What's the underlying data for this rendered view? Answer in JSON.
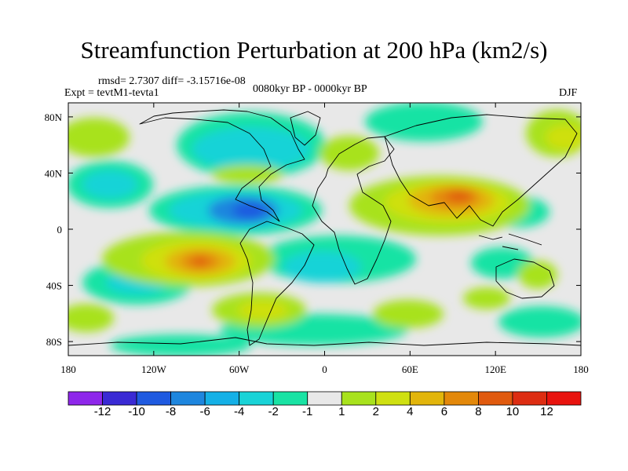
{
  "title": "Streamfunction Perturbation at 200 hPa (km2/s)",
  "stats": "rmsd= 2.7307 diff= -3.15716e-08",
  "experiment": "Expt = tevtM1-tevta1",
  "period": "0080kyr BP - 0000kyr BP",
  "season": "DJF",
  "axes": {
    "x_ticks": [
      "180",
      "120W",
      "60W",
      "0",
      "60E",
      "120E",
      "180"
    ],
    "y_ticks": [
      "80N",
      "40N",
      "0",
      "40S",
      "80S"
    ]
  },
  "colorbar": {
    "labels": [
      "-12",
      "-10",
      "-8",
      "-6",
      "-4",
      "-2",
      "-1",
      "1",
      "2",
      "4",
      "6",
      "8",
      "10",
      "12"
    ],
    "colors": [
      "#8e27ea",
      "#3a2ad4",
      "#1f5ae0",
      "#1e86de",
      "#14b0e6",
      "#19d3d7",
      "#19e3a4",
      "#e8e8e8",
      "#a8e21d",
      "#cfe011",
      "#e2b50b",
      "#e3880a",
      "#e05a0e",
      "#dd2d12",
      "#e8130e"
    ]
  },
  "map": {
    "background": "#e8e8e8",
    "lon_range": [
      -180,
      180
    ],
    "lat_range": [
      -90,
      90
    ]
  }
}
